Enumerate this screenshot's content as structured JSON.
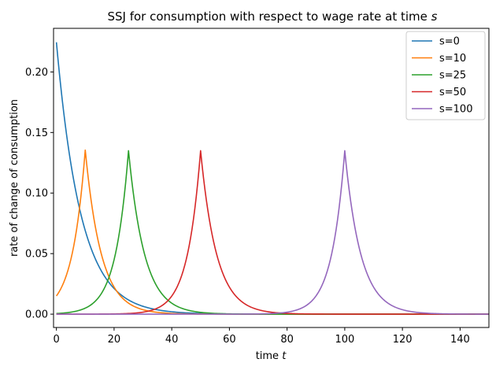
{
  "chart_data": {
    "type": "line",
    "title": "SSJ for consumption with respect to wage rate at time ",
    "title_italic": "s",
    "xlabel": "time ",
    "xlabel_italic": "t",
    "ylabel": "rate of change of consumption",
    "xlim": [
      -1,
      150
    ],
    "ylim": [
      -0.011,
      0.236
    ],
    "xticks": [
      0,
      20,
      40,
      60,
      80,
      100,
      120,
      140
    ],
    "yticks": [
      0.0,
      0.05,
      0.1,
      0.15,
      0.2
    ],
    "ytick_labels": [
      "0.00",
      "0.05",
      "0.10",
      "0.15",
      "0.20"
    ],
    "grid": false,
    "legend_position": "top-right",
    "series": [
      {
        "name": "s=0",
        "s": 0,
        "color": "#1f77b4",
        "peak": 0.2245,
        "left_decay": 0.0,
        "right_decay": 0.118
      },
      {
        "name": "s=10",
        "s": 10,
        "color": "#ff7f0e",
        "peak": 0.1355,
        "left_decay": 0.22,
        "right_decay": 0.18
      },
      {
        "name": "s=25",
        "s": 25,
        "color": "#2ca02c",
        "peak": 0.135,
        "left_decay": 0.22,
        "right_decay": 0.18
      },
      {
        "name": "s=50",
        "s": 50,
        "color": "#d62728",
        "peak": 0.135,
        "left_decay": 0.22,
        "right_decay": 0.18
      },
      {
        "name": "s=100",
        "s": 100,
        "color": "#9467bd",
        "peak": 0.135,
        "left_decay": 0.22,
        "right_decay": 0.18
      }
    ]
  }
}
